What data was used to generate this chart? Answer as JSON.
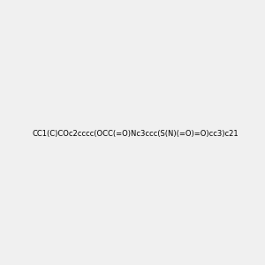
{
  "smiles": "CC1(C)COc2cccc(OCC(=O)Nc3ccc(S(N)(=O)=O)cc3)c21",
  "image_size": 300,
  "background_color": "#f0f0f0",
  "title": ""
}
